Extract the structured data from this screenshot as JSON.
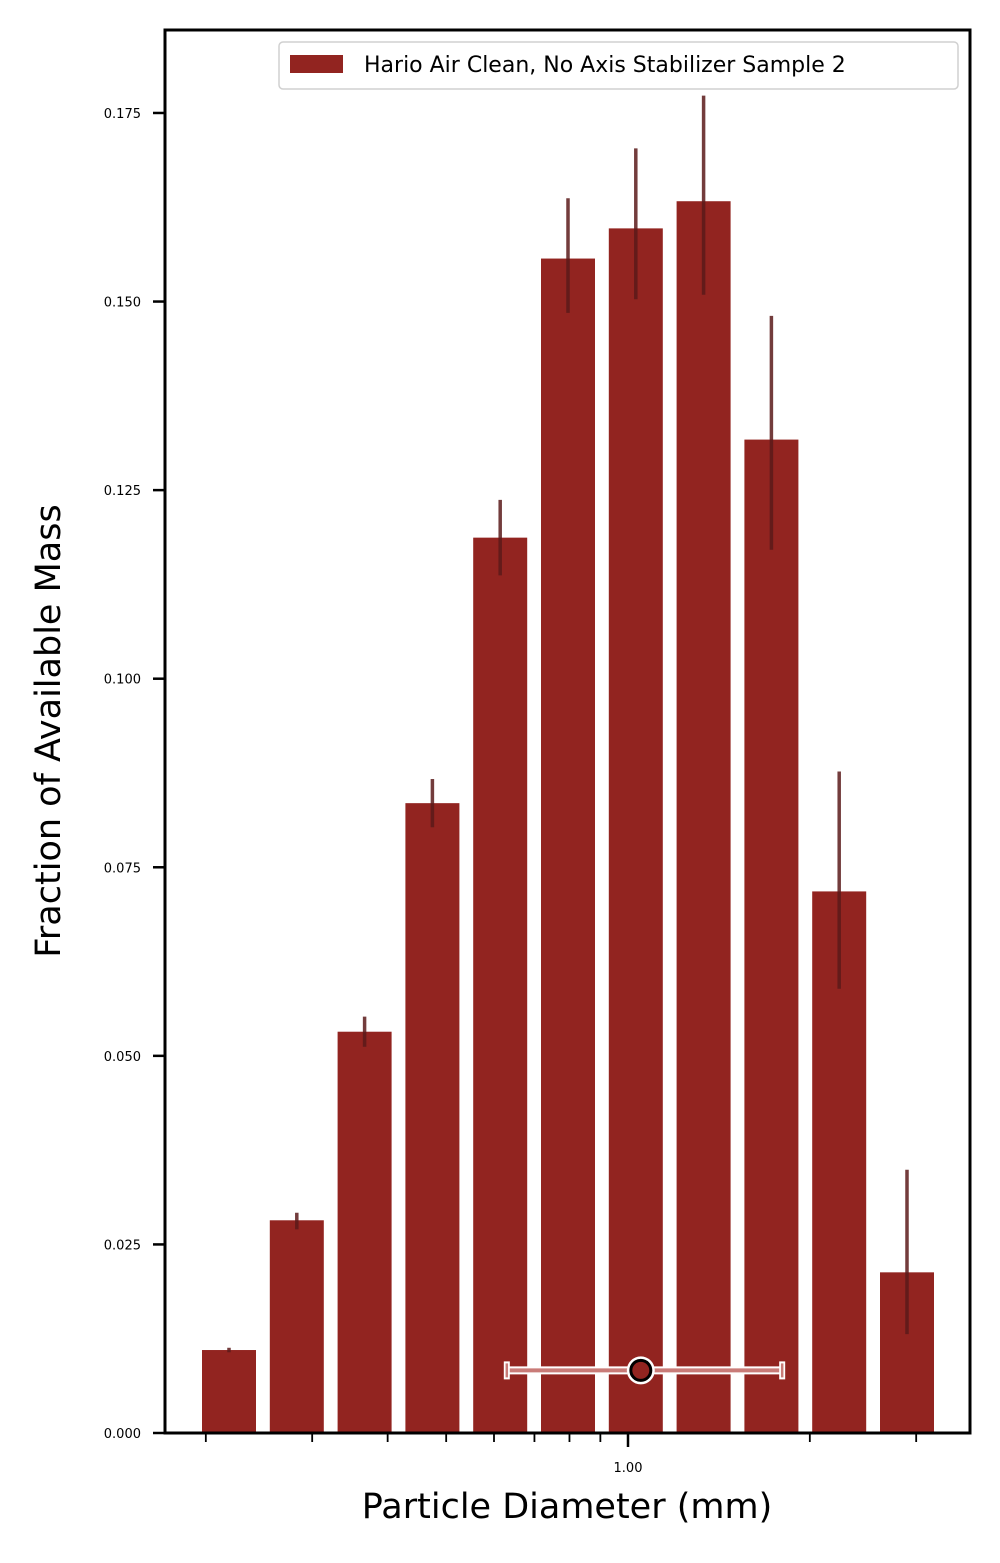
{
  "chart_data": {
    "type": "bar",
    "xlabel": "Particle Diameter (mm)",
    "ylabel": "Fraction of Available Mass",
    "x_scale": "log",
    "x_tick_labels": [
      "1.00"
    ],
    "ylim": [
      0,
      0.186
    ],
    "y_ticks": [
      0.0,
      0.025,
      0.05,
      0.075,
      0.1,
      0.125,
      0.15,
      0.175
    ],
    "y_tick_labels": [
      "0.000",
      "0.025",
      "0.050",
      "0.075",
      "0.100",
      "0.125",
      "0.150",
      "0.175"
    ],
    "legend_position": "top-right",
    "series": [
      {
        "name": "Hario Air Clean, No Axis Stabilizer Sample 2",
        "color": "#922420",
        "values": [
          0.011,
          0.0282,
          0.0532,
          0.0835,
          0.1187,
          0.1557,
          0.1597,
          0.1633,
          0.1317,
          0.0718,
          0.0213
        ],
        "error_low": [
          0.0107,
          0.027,
          0.0512,
          0.0803,
          0.1137,
          0.1485,
          0.1503,
          0.1509,
          0.1171,
          0.0589,
          0.0131
        ],
        "error_high": [
          0.0113,
          0.0292,
          0.0552,
          0.0867,
          0.1237,
          0.1637,
          0.1703,
          0.1773,
          0.1481,
          0.0877,
          0.0349
        ]
      }
    ],
    "summary_marker": {
      "y": 0.0083,
      "range": [
        0.63,
        1.8
      ],
      "center": 1.05
    },
    "error_bar_color": "#5a1a1a",
    "grid": false
  }
}
